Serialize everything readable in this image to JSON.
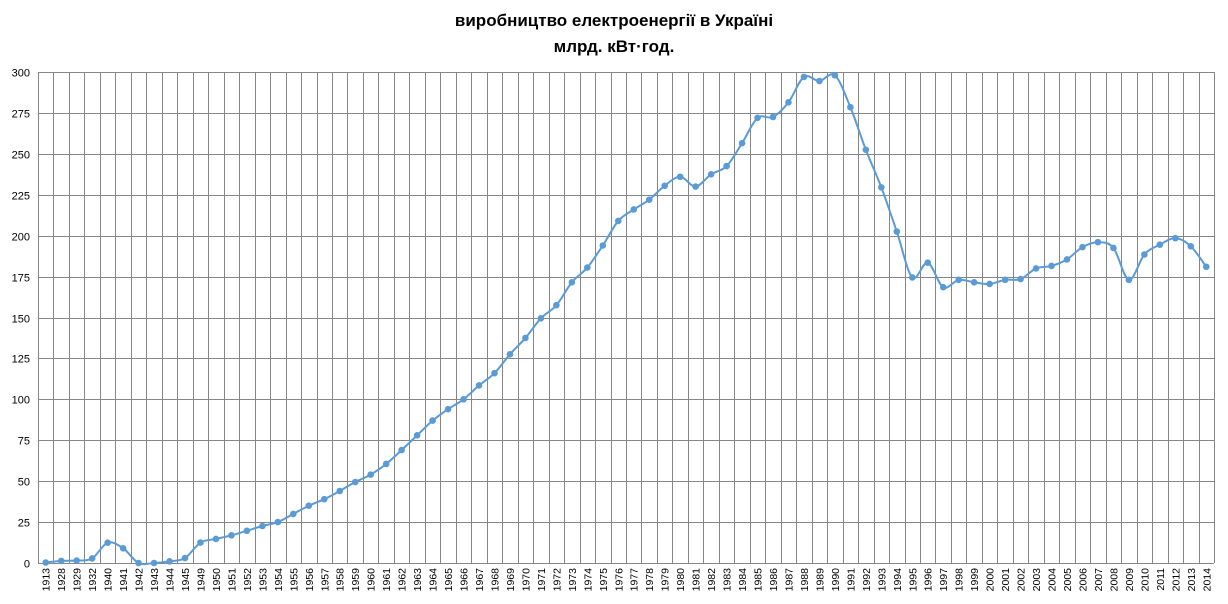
{
  "colors": {
    "series": "#5b9bd5",
    "grid": "#868686"
  },
  "chart_data": {
    "type": "line",
    "title": "виробництво електроенергії в Україні",
    "subtitle": "млрд. кВт·год.",
    "xlabel": "",
    "ylabel": "",
    "ylim": [
      0,
      300
    ],
    "yticks": [
      0,
      25,
      50,
      75,
      100,
      125,
      150,
      175,
      200,
      225,
      250,
      275,
      300
    ],
    "grid": true,
    "legend": "none",
    "categories": [
      "1913",
      "1928",
      "1929",
      "1932",
      "1940",
      "1941",
      "1942",
      "1943",
      "1944",
      "1945",
      "1949",
      "1950",
      "1951",
      "1952",
      "1953",
      "1954",
      "1955",
      "1956",
      "1957",
      "1958",
      "1959",
      "1960",
      "1961",
      "1962",
      "1963",
      "1964",
      "1965",
      "1966",
      "1967",
      "1968",
      "1969",
      "1970",
      "1971",
      "1972",
      "1973",
      "1974",
      "1975",
      "1976",
      "1977",
      "1978",
      "1979",
      "1980",
      "1981",
      "1982",
      "1983",
      "1984",
      "1985",
      "1986",
      "1987",
      "1988",
      "1989",
      "1990",
      "1991",
      "1992",
      "1993",
      "1994",
      "1995",
      "1996",
      "1997",
      "1998",
      "1999",
      "2000",
      "2001",
      "2002",
      "2003",
      "2004",
      "2005",
      "2006",
      "2007",
      "2008",
      "2009",
      "2010",
      "2011",
      "2012",
      "2013",
      "2014"
    ],
    "series": [
      {
        "values": [
          0.3,
          1.3,
          1.5,
          2.8,
          12.4,
          9,
          0,
          0,
          1,
          3,
          12.5,
          14.7,
          16.9,
          19.7,
          22.6,
          25,
          30,
          35,
          39,
          44,
          49.5,
          54,
          60.5,
          69,
          78,
          87,
          94,
          100,
          108.5,
          116,
          127.5,
          137.5,
          149.5,
          157.5,
          171.5,
          180.5,
          194,
          209,
          216,
          222,
          230.5,
          236,
          230,
          237.5,
          242.5,
          256.5,
          272,
          272.5,
          281.5,
          297,
          294.5,
          298,
          278.5,
          252.5,
          229.5,
          202.5,
          174.5,
          183.5,
          168.5,
          173,
          171.5,
          170.5,
          173,
          173.5,
          180,
          181.5,
          185.5,
          193,
          196,
          192.5,
          173,
          188.5,
          194.5,
          198.5,
          193.5,
          181
        ]
      }
    ]
  }
}
